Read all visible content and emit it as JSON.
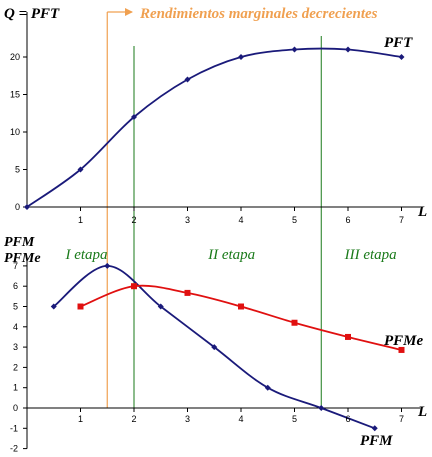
{
  "colors": {
    "pft_line": "#1a1a7a",
    "pfm_line": "#1a1a7a",
    "pfme_line": "#e01010",
    "stage_line": "#1a7a1a",
    "annotation": "#f0a050",
    "axis": "#000000"
  },
  "chart_data": [
    {
      "type": "line",
      "title": "",
      "ylabel": "Q = PFT",
      "xlabel": "L",
      "xlim": [
        0,
        7
      ],
      "ylim": [
        0,
        25
      ],
      "x_ticks": [
        "1",
        "2",
        "3",
        "4",
        "5",
        "6",
        "7"
      ],
      "y_ticks": [
        "0",
        "5",
        "10",
        "15",
        "20"
      ],
      "series": [
        {
          "name": "PFT",
          "x": [
            0,
            1,
            2,
            3,
            4,
            5,
            6,
            7
          ],
          "values": [
            0,
            5,
            12,
            17,
            20,
            21,
            21,
            20
          ]
        }
      ]
    },
    {
      "type": "line",
      "ylabel_lines": [
        "PFM",
        "PFMe"
      ],
      "xlabel": "L",
      "xlim": [
        0,
        7
      ],
      "ylim": [
        -2,
        7
      ],
      "x_ticks": [
        "1",
        "2",
        "3",
        "4",
        "5",
        "6",
        "7"
      ],
      "y_ticks": [
        "-2",
        "-1",
        "0",
        "1",
        "2",
        "3",
        "4",
        "5",
        "6",
        "7"
      ],
      "series": [
        {
          "name": "PFM",
          "x": [
            0.5,
            1.5,
            2.5,
            3.5,
            4.5,
            5.5,
            6.5
          ],
          "values": [
            5,
            7,
            5,
            3,
            1,
            0,
            -1
          ]
        },
        {
          "name": "PFMe",
          "x": [
            1,
            2,
            3,
            4,
            5,
            6,
            7
          ],
          "values": [
            5,
            6,
            5.67,
            5,
            4.2,
            3.5,
            2.86
          ]
        }
      ],
      "stages": [
        "I etapa",
        "II etapa",
        "III etapa"
      ]
    }
  ],
  "annotations": {
    "diminishing_returns": "Rendimientos marginales decrecientes",
    "stage_boundaries_x": [
      2,
      5.5
    ],
    "diminishing_returns_x": 1.5
  }
}
